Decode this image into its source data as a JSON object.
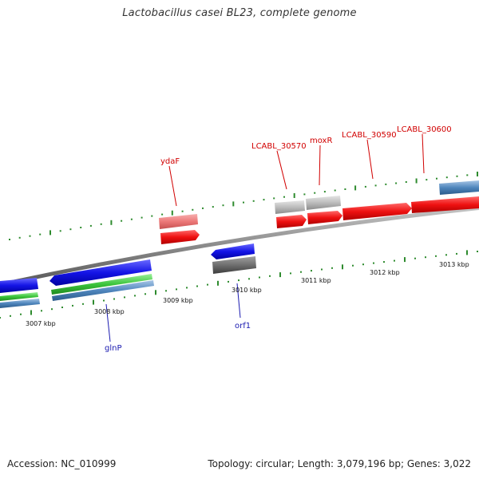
{
  "title": "Lactobacillus casei BL23, complete genome",
  "footer": {
    "accession": "Accession: NC_010999",
    "topology": "Topology: circular; Length: 3,079,196 bp; Genes: 3,022"
  },
  "colors": {
    "backbone": "#8a8a8a",
    "tick": "#2e8b2e",
    "forward_gene": "#e8141a",
    "forward_light": "#ee7a7a",
    "reverse_gene": "#1414e6",
    "rrna_green": "#3cc43c",
    "steelblue": "#4f86bd",
    "pseudo_gray": "#bcbcbc",
    "dark_gray": "#6f6f6f",
    "forward_label": "#d10000",
    "reverse_label": "#1a1ab0"
  },
  "scale_labels": [
    "3007 kbp",
    "3008 kbp",
    "3009 kbp",
    "3010 kbp",
    "3011 kbp",
    "3012 kbp",
    "3013 kbp"
  ],
  "gene_labels": {
    "forward": [
      "ydaF",
      "LCABL_30570",
      "moxR",
      "LCABL_30590",
      "LCABL_30600"
    ],
    "reverse": [
      "glnP",
      "orf1"
    ]
  }
}
